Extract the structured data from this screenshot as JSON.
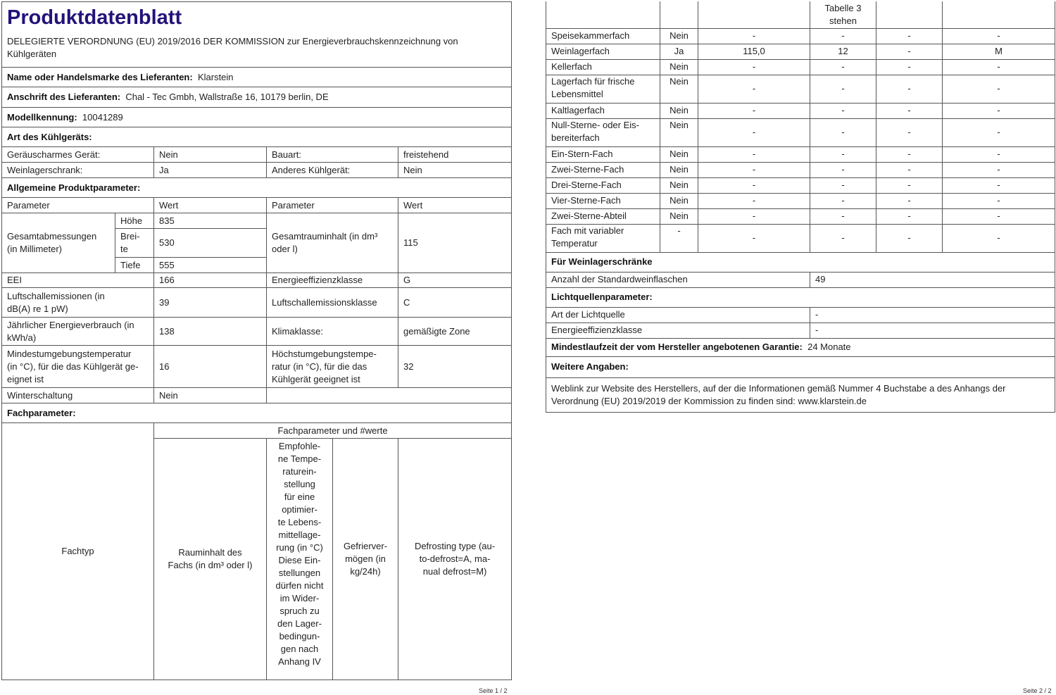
{
  "title": "Produktdatenblatt",
  "subtitle": "DELEGIERTE VERORDNUNG (EU) 2019/2016 DER KOMMISSION zur Energieverbrauchskennzeichnung von Kühlgeräten",
  "supplier": {
    "name_label": "Name oder Handelsmarke des Lieferanten:",
    "name": "Klarstein",
    "address_label": "Anschrift des Lieferanten:",
    "address": "Chal - Tec Gmbh, Wallstraße 16, 10179 berlin, DE",
    "model_label": "Modellkennung:",
    "model": "10041289"
  },
  "type": {
    "heading": "Art des Kühlgeräts:",
    "rows": [
      {
        "l1": "Geräuscharmes Gerät:",
        "v1": "Nein",
        "l2": "Bauart:",
        "v2": "freistehend"
      },
      {
        "l1": "Weinlagerschrank:",
        "v1": "Ja",
        "l2": "Anderes Kühlgerät:",
        "v2": "Nein"
      }
    ]
  },
  "general": {
    "heading": "Allgemeine Produktparameter:",
    "col_param": "Parameter",
    "col_value": "Wert",
    "dims_label": "Gesamtabmessungen\n(in Millimeter)",
    "height_label": "Höhe",
    "height": "835",
    "width_label": "Brei-\nte",
    "width": "530",
    "depth_label": "Tiefe",
    "depth": "555",
    "volume_label": "Gesamtrauminhalt (in dm³\noder l)",
    "volume": "115",
    "rows": [
      {
        "l1": "EEI",
        "v1": "166",
        "l2": "Energieeffizienzklasse",
        "v2": "G"
      },
      {
        "l1": "Luftschallemissionen (in\ndB(A) re 1 pW)",
        "v1": "39",
        "l2": "Luftschallemissionsklasse",
        "v2": "C"
      },
      {
        "l1": "Jährlicher Energieverbrauch (in\nkWh/a)",
        "v1": "138",
        "l2": "Klimaklasse:",
        "v2": "gemäßigte Zone"
      },
      {
        "l1": "Mindestumgebungstemperatur\n(in °C), für die das Kühlgerät ge-\neignet ist",
        "v1": "16",
        "l2": "Höchstumgebungstempe-\nratur (in °C), für die das\nKühlgerät geeignet ist",
        "v2": "32"
      }
    ],
    "winter_label": "Winterschaltung",
    "winter": "Nein"
  },
  "compartment": {
    "heading": "Fachparameter:",
    "type_col": "Fachtyp",
    "group": "Fachparameter und #werte",
    "cols": [
      "Rauminhalt des\nFachs (in dm³ oder l)",
      "Empfohle-\nne Tempe-\nraturein-\nstellung\nfür eine\noptimier-\nte Lebens-\nmittellage-\nrung (in °C)\nDiese Ein-\nstellungen\ndürfen nicht\nim Wider-\nspruch zu\nden Lager-\nbedingun-\ngen nach\nAnhang IV",
      "Gefrierver-\nmögen (in\nkg/24h)",
      "Defrosting type (au-\nto-defrost=A, ma-\nnual defrost=M)"
    ],
    "cont_header": "Tabelle 3\nstehen",
    "rows": [
      [
        "Speisekammerfach",
        "Nein",
        "-",
        "-",
        "-",
        "-"
      ],
      [
        "Weinlagerfach",
        "Ja",
        "115,0",
        "12",
        "-",
        "M"
      ],
      [
        "Kellerfach",
        "Nein",
        "-",
        "-",
        "-",
        "-"
      ],
      [
        "Lagerfach für frische\nLebensmittel",
        "Nein",
        "-",
        "-",
        "-",
        "-"
      ],
      [
        "Kaltlagerfach",
        "Nein",
        "-",
        "-",
        "-",
        "-"
      ],
      [
        "Null-Sterne- oder Eis-\nbereiterfach",
        "Nein",
        "-",
        "-",
        "-",
        "-"
      ],
      [
        "Ein-Stern-Fach",
        "Nein",
        "-",
        "-",
        "-",
        "-"
      ],
      [
        "Zwei-Sterne-Fach",
        "Nein",
        "-",
        "-",
        "-",
        "-"
      ],
      [
        "Drei-Sterne-Fach",
        "Nein",
        "-",
        "-",
        "-",
        "-"
      ],
      [
        "Vier-Sterne-Fach",
        "Nein",
        "-",
        "-",
        "-",
        "-"
      ],
      [
        "Zwei-Sterne-Abteil",
        "Nein",
        "-",
        "-",
        "-",
        "-"
      ],
      [
        "Fach mit variabler\nTemperatur",
        "-",
        "-",
        "-",
        "-",
        "-"
      ]
    ]
  },
  "wine": {
    "heading": "Für Weinlagerschränke",
    "bottles_label": "Anzahl der Standardweinflaschen",
    "bottles": "49"
  },
  "light": {
    "heading": "Lichtquellenparameter:",
    "type_label": "Art der Lichtquelle",
    "type": "-",
    "class_label": "Energieeffizienzklasse",
    "class": "-"
  },
  "warranty": {
    "label": "Mindestlaufzeit der vom Hersteller angebotenen Garantie:",
    "value": "24 Monate"
  },
  "further": {
    "heading": "Weitere Angaben:",
    "text": "Weblink zur Website des Herstellers, auf der die Informationen gemäß Nummer 4 Buchstabe a des Anhangs der Verordnung (EU) 2019/2019 der Kommission zu finden sind:  www.klarstein.de"
  },
  "pages": [
    "Seite 1 / 2",
    "Seite 2 / 2"
  ]
}
